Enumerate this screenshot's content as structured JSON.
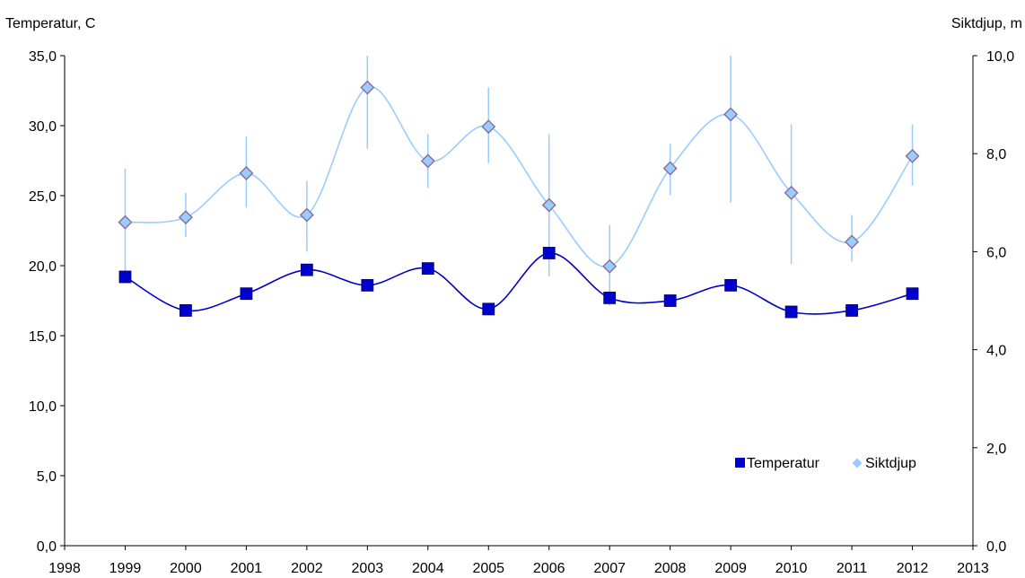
{
  "chart_data": {
    "type": "line",
    "x": [
      1999,
      2000,
      2001,
      2002,
      2003,
      2004,
      2005,
      2006,
      2007,
      2008,
      2009,
      2010,
      2011,
      2012
    ],
    "xlim": [
      1998,
      2013
    ],
    "x_ticks": [
      "1998",
      "1999",
      "2000",
      "2001",
      "2002",
      "2003",
      "2004",
      "2005",
      "2006",
      "2007",
      "2008",
      "2009",
      "2010",
      "2011",
      "2012",
      "2013"
    ],
    "y_left": {
      "label": "Temperatur, C",
      "lim": [
        0,
        35
      ],
      "ticks": [
        "0,0",
        "5,0",
        "10,0",
        "15,0",
        "20,0",
        "25,0",
        "30,0",
        "35,0"
      ]
    },
    "y_right": {
      "label": "Siktdjup, m",
      "lim": [
        0,
        10
      ],
      "ticks": [
        "0,0",
        "2,0",
        "4,0",
        "6,0",
        "8,0",
        "10,0"
      ]
    },
    "series": [
      {
        "name": "Temperatur",
        "axis": "left",
        "marker": "square",
        "color": "#0000CC",
        "values": [
          19.2,
          16.8,
          18.0,
          19.7,
          18.6,
          19.8,
          16.9,
          20.9,
          17.7,
          17.5,
          18.6,
          16.7,
          16.8,
          18.0
        ]
      },
      {
        "name": "Siktdjup",
        "axis": "right",
        "marker": "diamond",
        "color": "#99CCFF",
        "values": [
          6.6,
          6.7,
          7.6,
          6.75,
          9.35,
          7.85,
          8.55,
          6.95,
          5.7,
          7.7,
          8.8,
          7.2,
          6.2,
          7.95
        ],
        "error_low": [
          5.6,
          6.3,
          6.9,
          6.0,
          8.1,
          7.3,
          7.8,
          5.5,
          4.9,
          7.15,
          7.0,
          5.75,
          5.8,
          7.35
        ],
        "error_high": [
          7.7,
          7.2,
          8.35,
          7.45,
          10.0,
          8.4,
          9.35,
          8.4,
          6.55,
          8.2,
          10.0,
          8.6,
          6.75,
          8.6
        ]
      }
    ],
    "grid": false,
    "legend_position": "bottom-right"
  }
}
